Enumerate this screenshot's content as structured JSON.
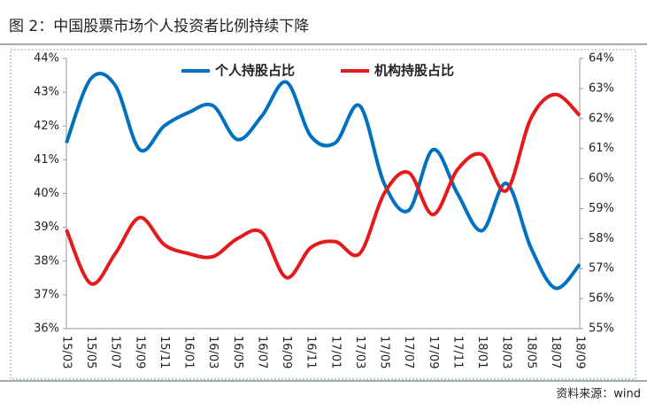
{
  "chart_data": {
    "type": "line",
    "title": "图 2：中国股票市场个人投资者比例持续下降",
    "source": "资料来源：wind",
    "categories": [
      "15/03",
      "15/05",
      "15/07",
      "15/09",
      "15/11",
      "16/01",
      "16/03",
      "16/05",
      "16/07",
      "16/09",
      "16/11",
      "17/01",
      "17/03",
      "17/05",
      "17/07",
      "17/09",
      "17/11",
      "18/01",
      "18/03",
      "18/05",
      "18/07",
      "18/09"
    ],
    "series": [
      {
        "name": "个人持股占比",
        "color": "#0070c0",
        "axis": "y",
        "values": [
          41.5,
          43.4,
          43.2,
          41.3,
          42.0,
          42.4,
          42.6,
          41.6,
          42.3,
          43.3,
          41.7,
          41.5,
          42.6,
          40.3,
          39.5,
          41.3,
          40.0,
          38.9,
          40.3,
          38.4,
          37.2,
          37.9
        ]
      },
      {
        "name": "机构持股占比",
        "color": "#e41a1c",
        "axis": "y2",
        "values": [
          58.3,
          56.5,
          57.5,
          58.7,
          57.8,
          57.5,
          57.4,
          58.0,
          58.2,
          56.7,
          57.7,
          57.9,
          57.5,
          59.5,
          60.2,
          58.8,
          60.3,
          60.8,
          59.6,
          62.0,
          62.8,
          62.1
        ]
      }
    ],
    "ylim": [
      36,
      44
    ],
    "yticks": [
      {
        "value": 36,
        "label": "36%"
      },
      {
        "value": 37,
        "label": "37%"
      },
      {
        "value": 38,
        "label": "38%"
      },
      {
        "value": 39,
        "label": "39%"
      },
      {
        "value": 40,
        "label": "40%"
      },
      {
        "value": 41,
        "label": "41%"
      },
      {
        "value": 42,
        "label": "42%"
      },
      {
        "value": 43,
        "label": "43%"
      },
      {
        "value": 44,
        "label": "44%"
      }
    ],
    "y2lim": [
      55,
      64
    ],
    "y2ticks": [
      {
        "value": 55,
        "label": "55%"
      },
      {
        "value": 56,
        "label": "56%"
      },
      {
        "value": 57,
        "label": "57%"
      },
      {
        "value": 58,
        "label": "58%"
      },
      {
        "value": 59,
        "label": "59%"
      },
      {
        "value": 60,
        "label": "60%"
      },
      {
        "value": 61,
        "label": "61%"
      },
      {
        "value": 62,
        "label": "62%"
      },
      {
        "value": 63,
        "label": "63%"
      },
      {
        "value": 64,
        "label": "64%"
      }
    ],
    "grid": false,
    "legend": "top"
  }
}
